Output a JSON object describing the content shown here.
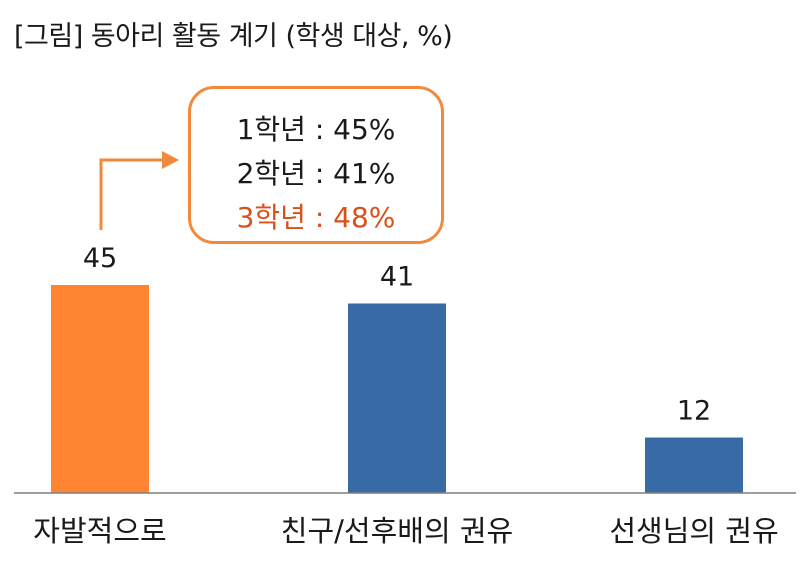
{
  "title": "[그림] 동아리 활동 계기 (학생 대상, %)",
  "colors": {
    "highlight": "#ff8533",
    "default": "#386aa5",
    "callout_border": "#f3893a",
    "callout_highlight_text": "#d9501a",
    "axis": "#7f7f7f"
  },
  "chart_data": {
    "type": "bar",
    "title": "[그림] 동아리 활동 계기 (학생 대상, %)",
    "categories": [
      "자발적으로",
      "친구/선후배의 권유",
      "선생님의 권유"
    ],
    "values": [
      45,
      41,
      12
    ],
    "value_labels": [
      "45",
      "41",
      "12"
    ],
    "highlight_index": 0,
    "ylim": [
      0,
      45
    ],
    "grid": false,
    "legend": "none",
    "annotation": {
      "lines": [
        "1학년 : 45%",
        "2학년 : 41%",
        "3학년 : 48%"
      ],
      "highlight_line": 2,
      "points_to_category": 0
    }
  }
}
